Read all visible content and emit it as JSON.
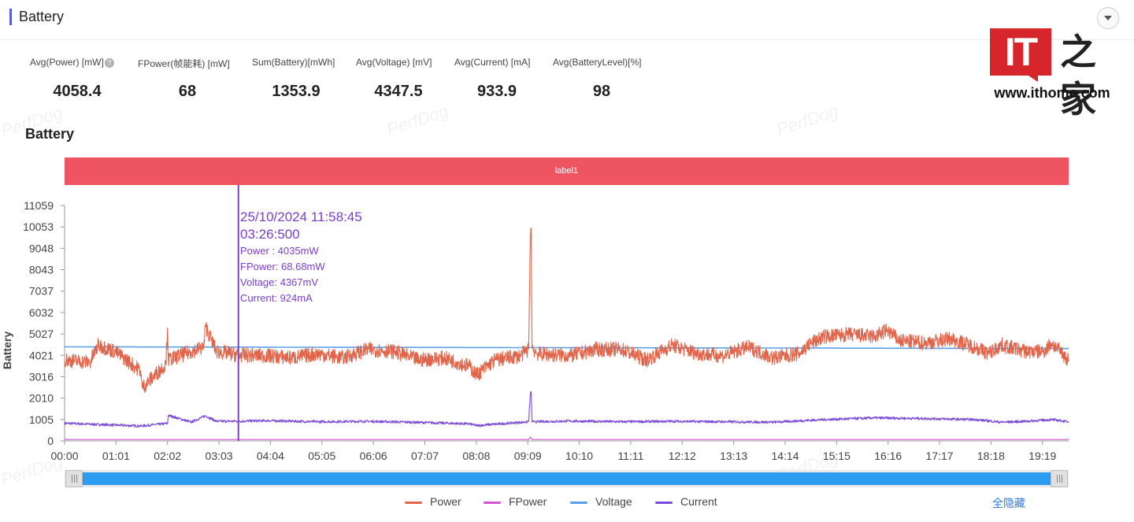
{
  "header": {
    "title": "Battery"
  },
  "logo": {
    "mark": "IT",
    "zh": "之家",
    "url": "www.ithome.com"
  },
  "stats": [
    {
      "label": "Avg(Power) [mW]",
      "value": "4058.4",
      "help": true
    },
    {
      "label": "FPower(帧能耗) [mW]",
      "value": "68"
    },
    {
      "label": "Sum(Battery)[mWh]",
      "value": "1353.9"
    },
    {
      "label": "Avg(Voltage) [mV]",
      "value": "4347.5"
    },
    {
      "label": "Avg(Current) [mA]",
      "value": "933.9"
    },
    {
      "label": "Avg(BatteryLevel)[%]",
      "value": "98"
    }
  ],
  "watermark": "PerfDog",
  "chart_title": "Battery",
  "label_band": "label1",
  "tooltip": {
    "date": "25/10/2024 11:58:45",
    "time": "03:26:500",
    "lines": [
      "Power  : 4035mW",
      "FPower: 68.68mW",
      "Voltage: 4367mV",
      "Current: 924mA"
    ]
  },
  "legend": {
    "hide_all": "全隐藏"
  },
  "colors": {
    "power": "#e0654a",
    "fpower": "#d455d1",
    "voltage": "#5aa0e8",
    "current": "#7b4ad8",
    "cursor": "#7b3fc9",
    "label_band": "#ef5461",
    "slider": "#2d9cf0"
  },
  "chart_data": {
    "type": "line",
    "ylabel": "Battery",
    "ylim": [
      0,
      11059
    ],
    "yticks": [
      0,
      1005,
      2010,
      3016,
      4021,
      5027,
      6032,
      7037,
      8043,
      9048,
      10053,
      11059
    ],
    "xlim": [
      "00:00",
      "19:50"
    ],
    "xticks": [
      "00:00",
      "01:01",
      "02:02",
      "03:03",
      "04:04",
      "05:05",
      "06:06",
      "07:07",
      "08:08",
      "09:09",
      "10:10",
      "11:11",
      "12:12",
      "13:13",
      "14:14",
      "15:15",
      "16:16",
      "17:17",
      "18:18",
      "19:19"
    ],
    "cursor_x": "03:26",
    "grid": false,
    "legend_position": "bottom",
    "series": [
      {
        "name": "Power",
        "color": "#e0654a",
        "x": [
          "00:00",
          "00:30",
          "00:40",
          "01:00",
          "01:30",
          "01:32",
          "02:00",
          "02:02",
          "02:03",
          "02:30",
          "02:45",
          "02:47",
          "03:00",
          "03:26",
          "04:00",
          "04:30",
          "05:00",
          "05:30",
          "06:00",
          "06:30",
          "07:00",
          "07:30",
          "08:00",
          "08:08",
          "08:30",
          "09:00",
          "09:10",
          "09:12",
          "09:13",
          "09:14",
          "09:20",
          "10:00",
          "10:30",
          "11:00",
          "11:30",
          "12:00",
          "12:30",
          "13:00",
          "13:30",
          "14:00",
          "14:30",
          "14:45",
          "15:00",
          "15:30",
          "16:00",
          "16:15",
          "16:30",
          "17:00",
          "17:30",
          "18:00",
          "18:15",
          "18:30",
          "19:00",
          "19:20",
          "19:30",
          "19:50"
        ],
        "values": [
          3800,
          3700,
          4500,
          4200,
          3300,
          2500,
          3600,
          5300,
          3800,
          4200,
          4400,
          5400,
          4200,
          4035,
          4000,
          3900,
          4100,
          3900,
          4300,
          4200,
          3800,
          3900,
          3500,
          3100,
          3800,
          4000,
          4300,
          9600,
          10000,
          4400,
          4100,
          4000,
          4300,
          4300,
          3800,
          4500,
          4100,
          4000,
          4400,
          3900,
          4100,
          4600,
          4900,
          5000,
          4900,
          5200,
          4700,
          4600,
          4800,
          4400,
          4100,
          4500,
          4200,
          4200,
          4600,
          3800
        ]
      },
      {
        "name": "FPower",
        "color": "#d455d1",
        "x": [
          "00:00",
          "09:10",
          "09:12",
          "09:14",
          "19:50"
        ],
        "values": [
          68,
          68,
          180,
          68,
          68
        ]
      },
      {
        "name": "Voltage",
        "color": "#5aa0e8",
        "x": [
          "00:00",
          "05:00",
          "10:00",
          "15:00",
          "19:50"
        ],
        "values": [
          4420,
          4400,
          4380,
          4360,
          4340
        ]
      },
      {
        "name": "Current",
        "color": "#7b4ad8",
        "x": [
          "00:00",
          "01:30",
          "02:02",
          "02:03",
          "02:30",
          "02:47",
          "03:00",
          "03:26",
          "04:00",
          "05:00",
          "06:00",
          "07:00",
          "08:00",
          "08:08",
          "09:00",
          "09:10",
          "09:12",
          "09:13",
          "09:14",
          "10:00",
          "11:00",
          "12:00",
          "13:00",
          "14:00",
          "15:00",
          "16:00",
          "17:00",
          "18:00",
          "18:30",
          "19:00",
          "19:30",
          "19:50"
        ],
        "values": [
          830,
          700,
          820,
          1200,
          880,
          1180,
          920,
          924,
          950,
          900,
          920,
          870,
          800,
          720,
          870,
          900,
          2200,
          2300,
          900,
          930,
          900,
          920,
          900,
          880,
          1000,
          1080,
          1050,
          1000,
          880,
          920,
          1000,
          900
        ]
      }
    ]
  }
}
